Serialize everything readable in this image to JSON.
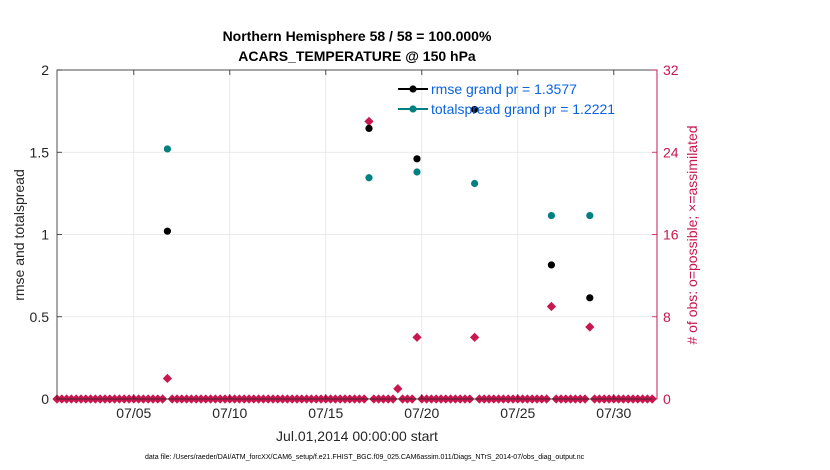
{
  "chart_data": {
    "type": "scatter",
    "title_line1": "Northern Hemisphere 58 / 58 = 100.000%",
    "title_line2": "ACARS_TEMPERATURE @ 150 hPa",
    "xlabel": "Jul.01,2014 00:00:00 start",
    "ylabel_left": "rmse and totalspread",
    "ylabel_right": "# of obs: o=possible; ×=assimilated",
    "xlim": [
      1,
      32.25
    ],
    "ylim_left": [
      0,
      2
    ],
    "ylim_right": [
      0,
      32
    ],
    "x_ticks": [
      5,
      10,
      15,
      20,
      25,
      30
    ],
    "x_tick_labels": [
      "07/05",
      "07/10",
      "07/15",
      "07/20",
      "07/25",
      "07/30"
    ],
    "y_left_ticks": [
      0,
      0.5,
      1,
      1.5,
      2
    ],
    "y_left_tick_labels": [
      "0",
      "0.5",
      "1",
      "1.5",
      "2"
    ],
    "y_right_ticks": [
      0,
      8,
      16,
      24,
      32
    ],
    "y_right_tick_labels": [
      "0",
      "8",
      "16",
      "24",
      "32"
    ],
    "grid": true,
    "legend_position": "top-right",
    "series": [
      {
        "name": "rmse grand pr = 1.3577",
        "axis": "left",
        "color": "#000000",
        "points": [
          [
            6.75,
            1.02
          ],
          [
            17.25,
            1.645
          ],
          [
            19.75,
            1.46
          ],
          [
            22.75,
            1.76
          ],
          [
            26.75,
            0.815
          ],
          [
            28.75,
            0.615
          ]
        ]
      },
      {
        "name": "totalspread grand pr = 1.2221",
        "axis": "left",
        "color": "#008080",
        "points": [
          [
            6.75,
            1.52
          ],
          [
            17.25,
            1.345
          ],
          [
            19.75,
            1.38
          ],
          [
            22.75,
            1.31
          ],
          [
            26.75,
            1.115
          ],
          [
            28.75,
            1.115
          ]
        ]
      },
      {
        "name": "obs possible",
        "axis": "right",
        "color": "#c8174f",
        "x_start": 1,
        "x_step": 0.25,
        "count": 125,
        "default": 0,
        "nonzero": [
          [
            6.75,
            2
          ],
          [
            17.25,
            27
          ],
          [
            18.75,
            1
          ],
          [
            19.75,
            6
          ],
          [
            22.75,
            6
          ],
          [
            26.75,
            9
          ],
          [
            28.75,
            7
          ]
        ]
      }
    ]
  },
  "footer": "data file: /Users/raeder/DAI/ATM_forcXX/CAM6_setup/f.e21.FHIST_BGC.f09_025.CAM6assim.011/Diags_NTrS_2014-07/obs_diag_output.nc",
  "colors": {
    "left_axis": "#262626",
    "right_axis": "#c8174f",
    "legend_text": "#0b63e0"
  }
}
